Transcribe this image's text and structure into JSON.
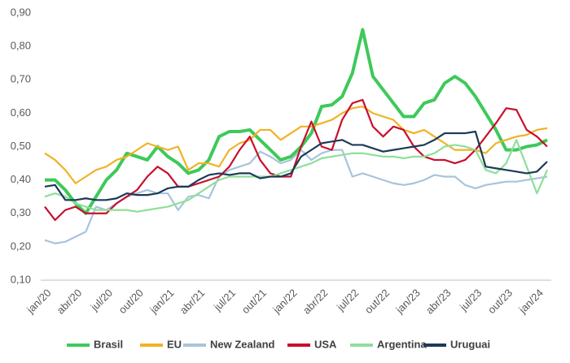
{
  "chart_data": {
    "type": "line",
    "categories": [
      "jan/20",
      null,
      null,
      "abr/20",
      null,
      null,
      "jul/20",
      null,
      null,
      "out/20",
      null,
      null,
      "jan/21",
      null,
      null,
      "abr/21",
      null,
      null,
      "jul/21",
      null,
      null,
      "out/21",
      null,
      null,
      "jan/22",
      null,
      null,
      "abr/22",
      null,
      null,
      "jul/22",
      null,
      null,
      "out/22",
      null,
      null,
      "jan/23",
      null,
      null,
      "abr/23",
      null,
      null,
      "jul/23",
      null,
      null,
      "out/23",
      null,
      null,
      "jan/24",
      null
    ],
    "ylim": [
      0.1,
      0.9
    ],
    "yticks": [
      {
        "value": 0.1,
        "label": "0,10"
      },
      {
        "value": 0.2,
        "label": "0,20"
      },
      {
        "value": 0.3,
        "label": "0,30"
      },
      {
        "value": 0.4,
        "label": "0,40"
      },
      {
        "value": 0.5,
        "label": "0,50"
      },
      {
        "value": 0.6,
        "label": "0,60"
      },
      {
        "value": 0.7,
        "label": "0,70"
      },
      {
        "value": 0.8,
        "label": "0,80"
      },
      {
        "value": 0.9,
        "label": "0,90"
      }
    ],
    "grid": false,
    "legend": "bottom",
    "series": [
      {
        "name": "Brasil",
        "color": "#3ec95a",
        "values": [
          0.4,
          0.4,
          0.37,
          0.33,
          0.3,
          0.35,
          0.4,
          0.43,
          0.48,
          0.47,
          0.46,
          0.5,
          0.47,
          0.45,
          0.42,
          0.43,
          0.46,
          0.53,
          0.545,
          0.545,
          0.55,
          0.52,
          0.49,
          0.46,
          0.47,
          0.5,
          0.54,
          0.62,
          0.625,
          0.65,
          0.72,
          0.85,
          0.71,
          0.67,
          0.63,
          0.59,
          0.59,
          0.63,
          0.64,
          0.69,
          0.71,
          0.69,
          0.65,
          0.6,
          0.55,
          0.49,
          0.49,
          0.5,
          0.505,
          0.52
        ]
      },
      {
        "name": "EU",
        "color": "#f0b323",
        "values": [
          0.48,
          0.46,
          0.43,
          0.39,
          0.41,
          0.43,
          0.44,
          0.46,
          0.47,
          0.49,
          0.51,
          0.5,
          0.49,
          0.5,
          0.43,
          0.45,
          0.45,
          0.44,
          0.49,
          0.51,
          0.52,
          0.55,
          0.55,
          0.52,
          0.54,
          0.56,
          0.56,
          0.57,
          0.58,
          0.6,
          0.615,
          0.62,
          0.6,
          0.59,
          0.58,
          0.55,
          0.54,
          0.55,
          0.53,
          0.51,
          0.49,
          0.49,
          0.49,
          0.48,
          0.51,
          0.52,
          0.53,
          0.535,
          0.55,
          0.555
        ]
      },
      {
        "name": "New Zealand",
        "color": "#a8c4dc",
        "values": [
          0.22,
          0.21,
          0.215,
          0.23,
          0.245,
          0.32,
          0.31,
          0.33,
          0.35,
          0.36,
          0.37,
          0.36,
          0.36,
          0.31,
          0.35,
          0.355,
          0.345,
          0.41,
          0.43,
          0.44,
          0.45,
          0.485,
          0.47,
          0.45,
          0.46,
          0.49,
          0.46,
          0.48,
          0.49,
          0.49,
          0.41,
          0.42,
          0.41,
          0.4,
          0.39,
          0.385,
          0.39,
          0.4,
          0.415,
          0.41,
          0.41,
          0.385,
          0.375,
          0.385,
          0.39,
          0.395,
          0.395,
          0.4,
          0.405,
          0.41
        ]
      },
      {
        "name": "USA",
        "color": "#c8102e",
        "values": [
          0.32,
          0.28,
          0.31,
          0.32,
          0.3,
          0.3,
          0.3,
          0.33,
          0.35,
          0.37,
          0.41,
          0.44,
          0.42,
          0.38,
          0.38,
          0.39,
          0.4,
          0.41,
          0.44,
          0.49,
          0.53,
          0.46,
          0.42,
          0.41,
          0.41,
          0.5,
          0.575,
          0.5,
          0.49,
          0.58,
          0.63,
          0.64,
          0.56,
          0.53,
          0.56,
          0.55,
          0.5,
          0.47,
          0.46,
          0.46,
          0.45,
          0.46,
          0.49,
          0.53,
          0.57,
          0.615,
          0.61,
          0.55,
          0.53,
          0.5
        ]
      },
      {
        "name": "Argentina",
        "color": "#8fdf9a",
        "values": [
          0.35,
          0.36,
          0.35,
          0.33,
          0.32,
          0.31,
          0.31,
          0.31,
          0.31,
          0.305,
          0.31,
          0.315,
          0.32,
          0.33,
          0.34,
          0.36,
          0.38,
          0.4,
          0.41,
          0.41,
          0.41,
          0.41,
          0.41,
          0.42,
          0.43,
          0.44,
          0.45,
          0.465,
          0.47,
          0.475,
          0.48,
          0.48,
          0.475,
          0.47,
          0.47,
          0.465,
          0.47,
          0.47,
          0.48,
          0.5,
          0.505,
          0.5,
          0.49,
          0.43,
          0.42,
          0.45,
          0.52,
          0.44,
          0.36,
          0.43
        ]
      },
      {
        "name": "Uruguai",
        "color": "#1b3a57",
        "values": [
          0.38,
          0.385,
          0.34,
          0.34,
          0.345,
          0.34,
          0.34,
          0.345,
          0.36,
          0.355,
          0.355,
          0.36,
          0.375,
          0.38,
          0.38,
          0.4,
          0.415,
          0.42,
          0.415,
          0.42,
          0.42,
          0.405,
          0.41,
          0.41,
          0.42,
          0.47,
          0.49,
          0.51,
          0.515,
          0.52,
          0.505,
          0.505,
          0.495,
          0.485,
          0.49,
          0.495,
          0.5,
          0.505,
          0.52,
          0.54,
          0.54,
          0.54,
          0.545,
          0.44,
          0.435,
          0.43,
          0.425,
          0.42,
          0.425,
          0.455
        ]
      }
    ]
  }
}
